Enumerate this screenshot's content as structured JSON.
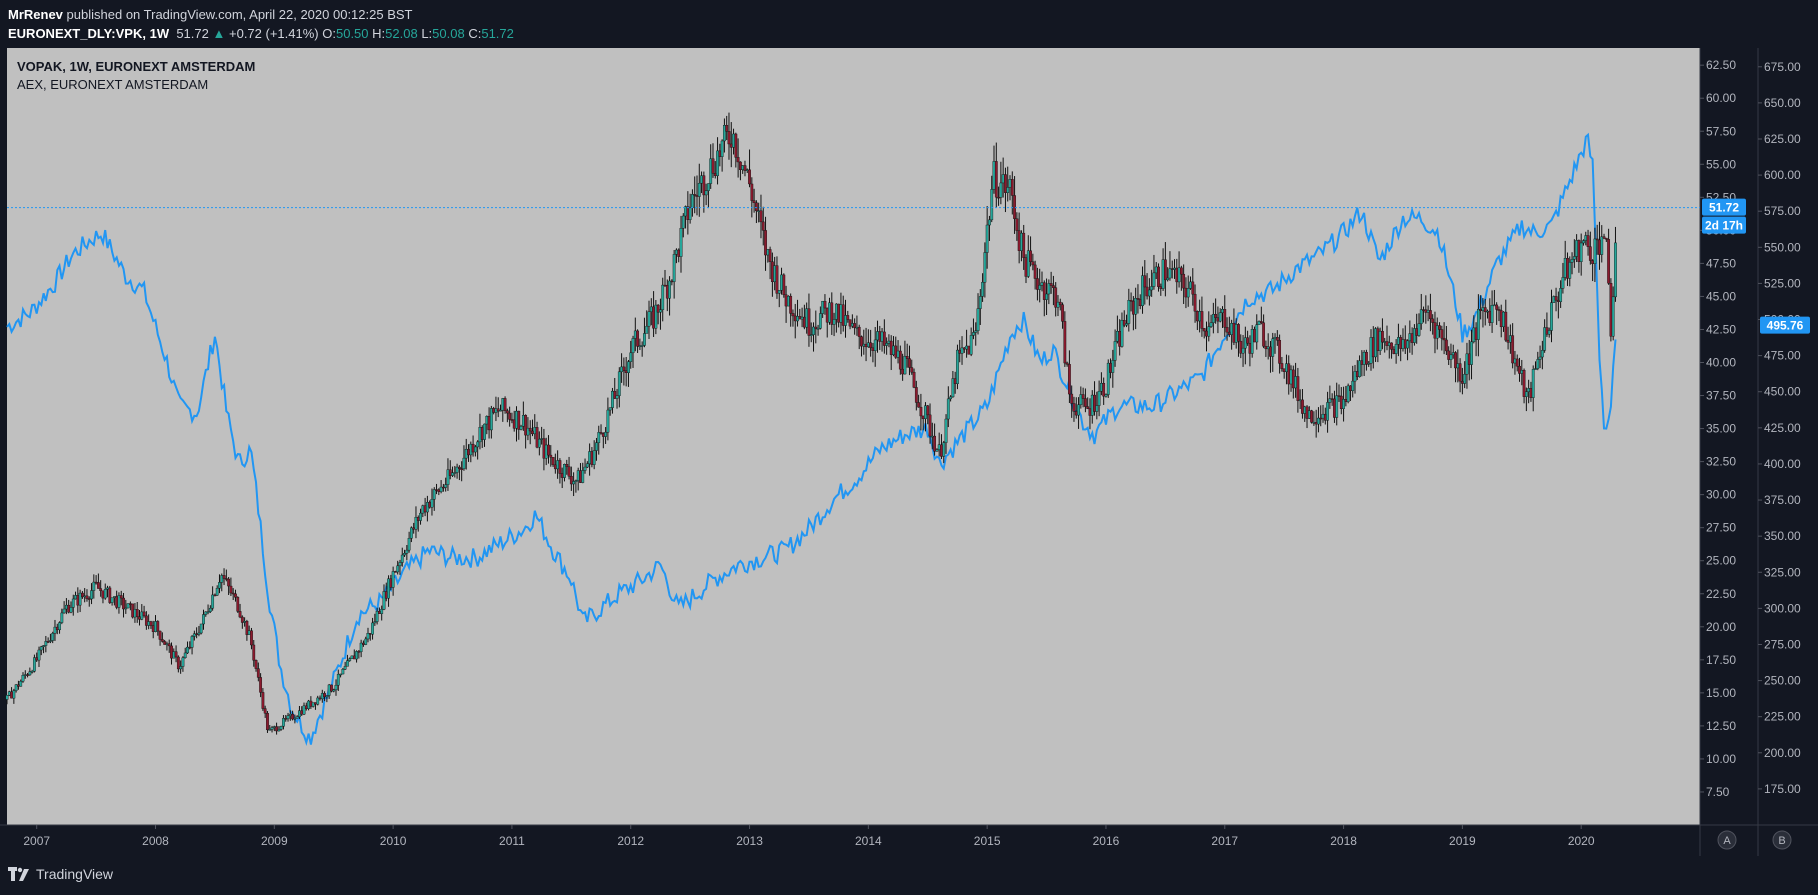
{
  "header": {
    "author": "MrRenev",
    "published_text": "published on TradingView.com, April 22, 2020 00:12:25 BST",
    "symbol": "EURONEXT_DLY:VPK, 1W",
    "last": "51.72",
    "change": "+0.72 (+1.41%)",
    "o_label": "O:",
    "o": "50.50",
    "h_label": "H:",
    "h": "52.08",
    "l_label": "L:",
    "l": "50.08",
    "c_label": "C:",
    "c": "51.72"
  },
  "legend": {
    "main_series": "VOPAK, 1W, EURONEXT AMSTERDAM",
    "compare_series": "AEX, EURONEXT AMSTERDAM"
  },
  "price_badges": {
    "last_price": "51.72",
    "countdown": "2d 17h",
    "compare_last": "495.76"
  },
  "scale_buttons": {
    "a": "A",
    "b": "B"
  },
  "footer": {
    "brand": "TradingView"
  },
  "colors": {
    "background": "#131722",
    "plot_bg": "#c0c0c0",
    "candle_up": "#26a69a",
    "candle_down": "#8b1a2e",
    "wick": "#111111",
    "aex_line": "#2196f3",
    "accent": "#2196f3"
  },
  "chart_data": {
    "type": "candlestick-with-line",
    "title": "VOPAK, 1W, EURONEXT AMSTERDAM",
    "x_ticks": [
      "2007",
      "2008",
      "2009",
      "2010",
      "2011",
      "2012",
      "2013",
      "2014",
      "2015",
      "2016",
      "2017",
      "2018",
      "2019",
      "2020"
    ],
    "xlim": [
      2006.75,
      2021.0
    ],
    "y_left": {
      "ticks": [
        "62.50",
        "60.00",
        "57.50",
        "55.00",
        "52.50",
        "50.00",
        "47.50",
        "45.00",
        "42.50",
        "40.00",
        "37.50",
        "35.00",
        "32.50",
        "30.00",
        "27.50",
        "25.00",
        "22.50",
        "20.00",
        "17.50",
        "15.00",
        "12.50",
        "10.00",
        "7.50"
      ],
      "ylim": [
        5.0,
        63.8
      ]
    },
    "y_right": {
      "ticks": [
        "675.00",
        "650.00",
        "625.00",
        "600.00",
        "575.00",
        "550.00",
        "525.00",
        "500.00",
        "475.00",
        "450.00",
        "425.00",
        "400.00",
        "375.00",
        "350.00",
        "325.00",
        "300.00",
        "275.00",
        "250.00",
        "225.00",
        "200.00",
        "175.00"
      ],
      "ylim": [
        150.0,
        688.0
      ]
    },
    "series": [
      {
        "name": "VOPAK, 1W, EURONEXT AMSTERDAM",
        "axis": "left",
        "x": [
          2006.75,
          2007.0,
          2007.25,
          2007.5,
          2007.75,
          2008.0,
          2008.2,
          2008.4,
          2008.55,
          2008.7,
          2008.8,
          2008.95,
          2009.2,
          2009.5,
          2009.8,
          2010.0,
          2010.25,
          2010.5,
          2010.75,
          2010.9,
          2011.1,
          2011.3,
          2011.55,
          2011.7,
          2011.85,
          2012.0,
          2012.2,
          2012.35,
          2012.5,
          2012.65,
          2012.85,
          2013.0,
          2013.15,
          2013.3,
          2013.5,
          2013.7,
          2013.9,
          2014.1,
          2014.3,
          2014.5,
          2014.6,
          2014.75,
          2014.9,
          2015.05,
          2015.2,
          2015.3,
          2015.45,
          2015.6,
          2015.7,
          2015.85,
          2016.0,
          2016.15,
          2016.3,
          2016.5,
          2016.7,
          2016.85,
          2017.0,
          2017.15,
          2017.3,
          2017.5,
          2017.7,
          2017.85,
          2018.0,
          2018.15,
          2018.3,
          2018.5,
          2018.7,
          2018.85,
          2019.0,
          2019.15,
          2019.3,
          2019.45,
          2019.55,
          2019.7,
          2019.85,
          2020.0,
          2020.1,
          2020.2,
          2020.25,
          2020.3
        ],
        "values": [
          14.5,
          17.5,
          21.5,
          23.0,
          21.5,
          20.0,
          17.0,
          20.5,
          24.0,
          21.5,
          19.0,
          12.0,
          13.5,
          15.5,
          19.5,
          24.0,
          29.0,
          31.5,
          35.0,
          36.5,
          35.5,
          33.0,
          31.0,
          33.5,
          37.0,
          41.0,
          43.5,
          47.0,
          52.0,
          54.5,
          57.5,
          53.5,
          48.0,
          45.0,
          43.0,
          44.0,
          42.0,
          41.5,
          40.0,
          35.5,
          33.0,
          40.0,
          42.0,
          54.0,
          53.0,
          48.0,
          46.0,
          45.0,
          37.0,
          36.5,
          38.5,
          43.0,
          45.5,
          47.0,
          45.5,
          42.5,
          43.5,
          41.0,
          42.5,
          40.0,
          36.0,
          36.5,
          37.0,
          40.0,
          42.0,
          41.0,
          44.0,
          41.5,
          39.0,
          43.5,
          44.5,
          40.0,
          37.0,
          42.5,
          46.5,
          49.0,
          48.5,
          50.0,
          42.0,
          51.72
        ]
      },
      {
        "name": "AEX, EURONEXT AMSTERDAM",
        "axis": "right",
        "x": [
          2006.75,
          2006.95,
          2007.15,
          2007.3,
          2007.45,
          2007.55,
          2007.75,
          2007.9,
          2008.1,
          2008.2,
          2008.35,
          2008.5,
          2008.6,
          2008.7,
          2008.8,
          2008.85,
          2008.95,
          2009.05,
          2009.15,
          2009.3,
          2009.5,
          2009.7,
          2009.9,
          2010.1,
          2010.3,
          2010.5,
          2010.7,
          2010.9,
          2011.1,
          2011.2,
          2011.35,
          2011.5,
          2011.6,
          2011.75,
          2011.9,
          2012.1,
          2012.25,
          2012.4,
          2012.55,
          2012.7,
          2012.9,
          2013.1,
          2013.3,
          2013.5,
          2013.7,
          2013.9,
          2014.1,
          2014.3,
          2014.5,
          2014.6,
          2014.8,
          2015.0,
          2015.2,
          2015.3,
          2015.45,
          2015.55,
          2015.7,
          2015.8,
          2015.9,
          2016.1,
          2016.2,
          2016.4,
          2016.6,
          2016.8,
          2017.0,
          2017.2,
          2017.4,
          2017.6,
          2017.8,
          2018.0,
          2018.15,
          2018.3,
          2018.5,
          2018.65,
          2018.8,
          2018.95,
          2019.0,
          2019.1,
          2019.3,
          2019.5,
          2019.6,
          2019.75,
          2019.9,
          2020.05,
          2020.1,
          2020.15,
          2020.2,
          2020.25,
          2020.3
        ],
        "values": [
          495,
          505,
          525,
          545,
          555,
          560,
          530,
          520,
          470,
          440,
          435,
          490,
          435,
          400,
          410,
          380,
          310,
          260,
          230,
          210,
          250,
          295,
          305,
          325,
          340,
          335,
          335,
          345,
          355,
          365,
          340,
          320,
          290,
          300,
          310,
          320,
          330,
          300,
          310,
          320,
          330,
          335,
          340,
          355,
          375,
          390,
          410,
          420,
          425,
          400,
          420,
          440,
          490,
          500,
          470,
          480,
          450,
          430,
          420,
          440,
          440,
          440,
          450,
          460,
          490,
          515,
          520,
          535,
          545,
          560,
          575,
          540,
          570,
          570,
          560,
          510,
          490,
          500,
          540,
          565,
          560,
          565,
          595,
          625,
          605,
          480,
          420,
          440,
          495.76
        ]
      }
    ]
  }
}
